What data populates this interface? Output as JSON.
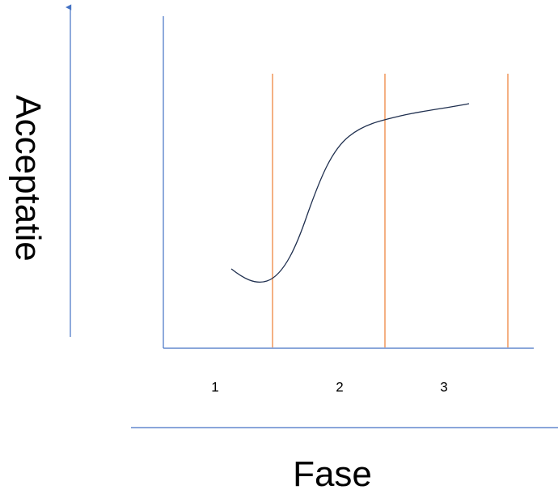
{
  "y_axis_label": "Acceptatie",
  "x_axis_label": "Fase",
  "phases": [
    "1",
    "2",
    "3"
  ],
  "colors": {
    "axis": "#4472c4",
    "phase_divider": "#ed7d31",
    "curve": "#1f2f4f"
  },
  "curve_shape": "S-curve: slight dip early in phase 2, steep rise through phase 2, leveling off in phase 3"
}
